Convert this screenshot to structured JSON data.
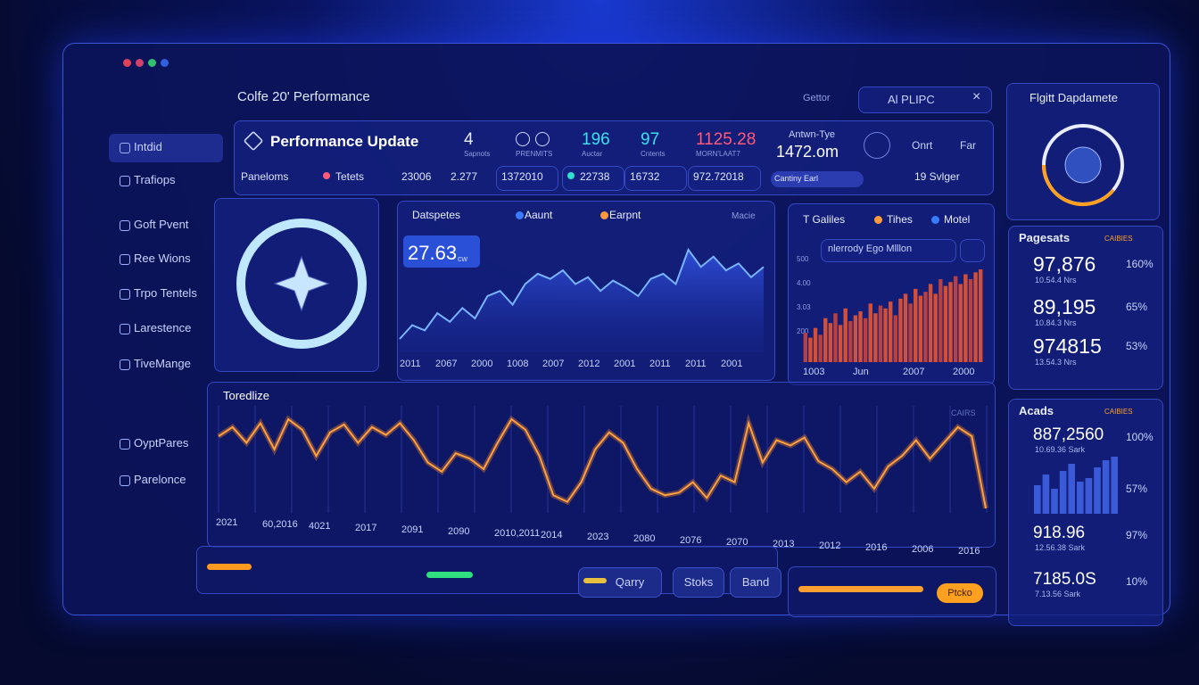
{
  "window": {
    "title": "Colfe 20' Performance"
  },
  "sidebar": {
    "items": [
      "Intdid",
      "Trafiops",
      "Goft Pvent",
      "Ree Wions",
      "Trpo Tentels",
      "Larestence",
      "TiveMange",
      "OyptPares",
      "Parelonce"
    ]
  },
  "header": {
    "filter": "Gettor",
    "search": "Al PLIPC"
  },
  "summary": {
    "title": "Performance Update",
    "stats": [
      {
        "value": "4",
        "label": "Sapnots"
      },
      {
        "label": "PRENMITS"
      },
      {
        "value": "196",
        "label": "Auctar"
      },
      {
        "value": "97",
        "label": "Cntents"
      },
      {
        "value": "1125.28",
        "label": "MORN'LAAT7"
      }
    ],
    "account": {
      "label": "Antwn-Tye",
      "value": "1472.om"
    },
    "buttons": [
      "Onrt",
      "Far"
    ],
    "row": [
      "Paneloms",
      "Tetets",
      "23006",
      "2.277",
      "1372010",
      "22738",
      "16732",
      "972.72018",
      "Cantiny Earl",
      "19 Svlger"
    ]
  },
  "trend_panel": {
    "legend": [
      "Datspetes",
      "Aaunt",
      "Earpnt"
    ],
    "corner": "Macie",
    "badge": {
      "value": "27.63",
      "unit": "cw"
    },
    "x_labels": [
      "2011",
      "2067",
      "2000",
      "1008",
      "2007",
      "2012",
      "2001",
      "2011",
      "2011",
      "2001"
    ],
    "values": [
      20,
      28,
      25,
      35,
      30,
      38,
      32,
      45,
      48,
      40,
      52,
      58,
      55,
      60,
      52,
      56,
      48,
      54,
      50,
      45,
      55,
      58,
      52,
      72,
      62,
      68,
      60,
      64,
      56,
      62
    ]
  },
  "bar_panel": {
    "legend": [
      "T Galiles",
      "Tihes",
      "Motel"
    ],
    "filter": "nlerrody Ego Mlllon",
    "y_labels": [
      "500",
      "4.00",
      "3.03",
      "200"
    ],
    "x_labels": [
      "1003",
      "Jun",
      "2007",
      "2000"
    ],
    "values": [
      30,
      25,
      35,
      28,
      45,
      40,
      50,
      38,
      55,
      42,
      48,
      52,
      45,
      60,
      50,
      58,
      55,
      62,
      48,
      65,
      70,
      60,
      75,
      68,
      72,
      80,
      70,
      85,
      78,
      82,
      88,
      80,
      90,
      85,
      92,
      95
    ]
  },
  "wave_panel": {
    "title": "Toredlize",
    "corner": "CAIRS",
    "x_labels": [
      "2021",
      "60,2016",
      "4021",
      "2017",
      "2091",
      "2090",
      "2010,2011",
      "2014",
      "2023",
      "2080",
      "2076",
      "2070",
      "2013",
      "2012",
      "2016",
      "2006",
      "2016"
    ],
    "values": [
      75,
      82,
      70,
      85,
      65,
      88,
      80,
      60,
      78,
      84,
      70,
      82,
      76,
      85,
      72,
      55,
      48,
      62,
      58,
      50,
      70,
      88,
      80,
      60,
      30,
      25,
      40,
      65,
      78,
      70,
      50,
      35,
      30,
      32,
      40,
      28,
      45,
      40,
      85,
      55,
      72,
      68,
      74,
      56,
      50,
      40,
      48,
      35,
      52,
      60,
      72,
      58,
      70,
      82,
      75,
      20
    ]
  },
  "controls": {
    "buttons": [
      "Qarry",
      "Stoks",
      "Band"
    ],
    "action": "Ptcko"
  },
  "side": {
    "title": "Flgitt Dapdamete",
    "pages": {
      "title": "Pagesats",
      "corner": "CAIBIES",
      "items": [
        {
          "value": "97,876",
          "pct": "160%",
          "sub": "10.54.4 Nrs"
        },
        {
          "value": "89,195",
          "pct": "65%",
          "sub": "10.84.3 Nrs"
        },
        {
          "value": "974815",
          "pct": "53%",
          "sub": "13.54.3 Nrs"
        }
      ]
    },
    "ads": {
      "title": "Acads",
      "corner": "CAIBIES",
      "mid_pct": "57%",
      "bars": [
        40,
        55,
        35,
        60,
        70,
        45,
        50,
        65,
        75,
        80
      ],
      "items": [
        {
          "value": "887,2560",
          "pct": "100%",
          "sub": "10.69.36 Sark"
        },
        {
          "value": "918.96",
          "pct": "97%",
          "sub": "12.56.38 Sark"
        },
        {
          "value": "7185.0S",
          "pct": "10%",
          "sub": "7.13.56 Sark"
        }
      ]
    }
  }
}
